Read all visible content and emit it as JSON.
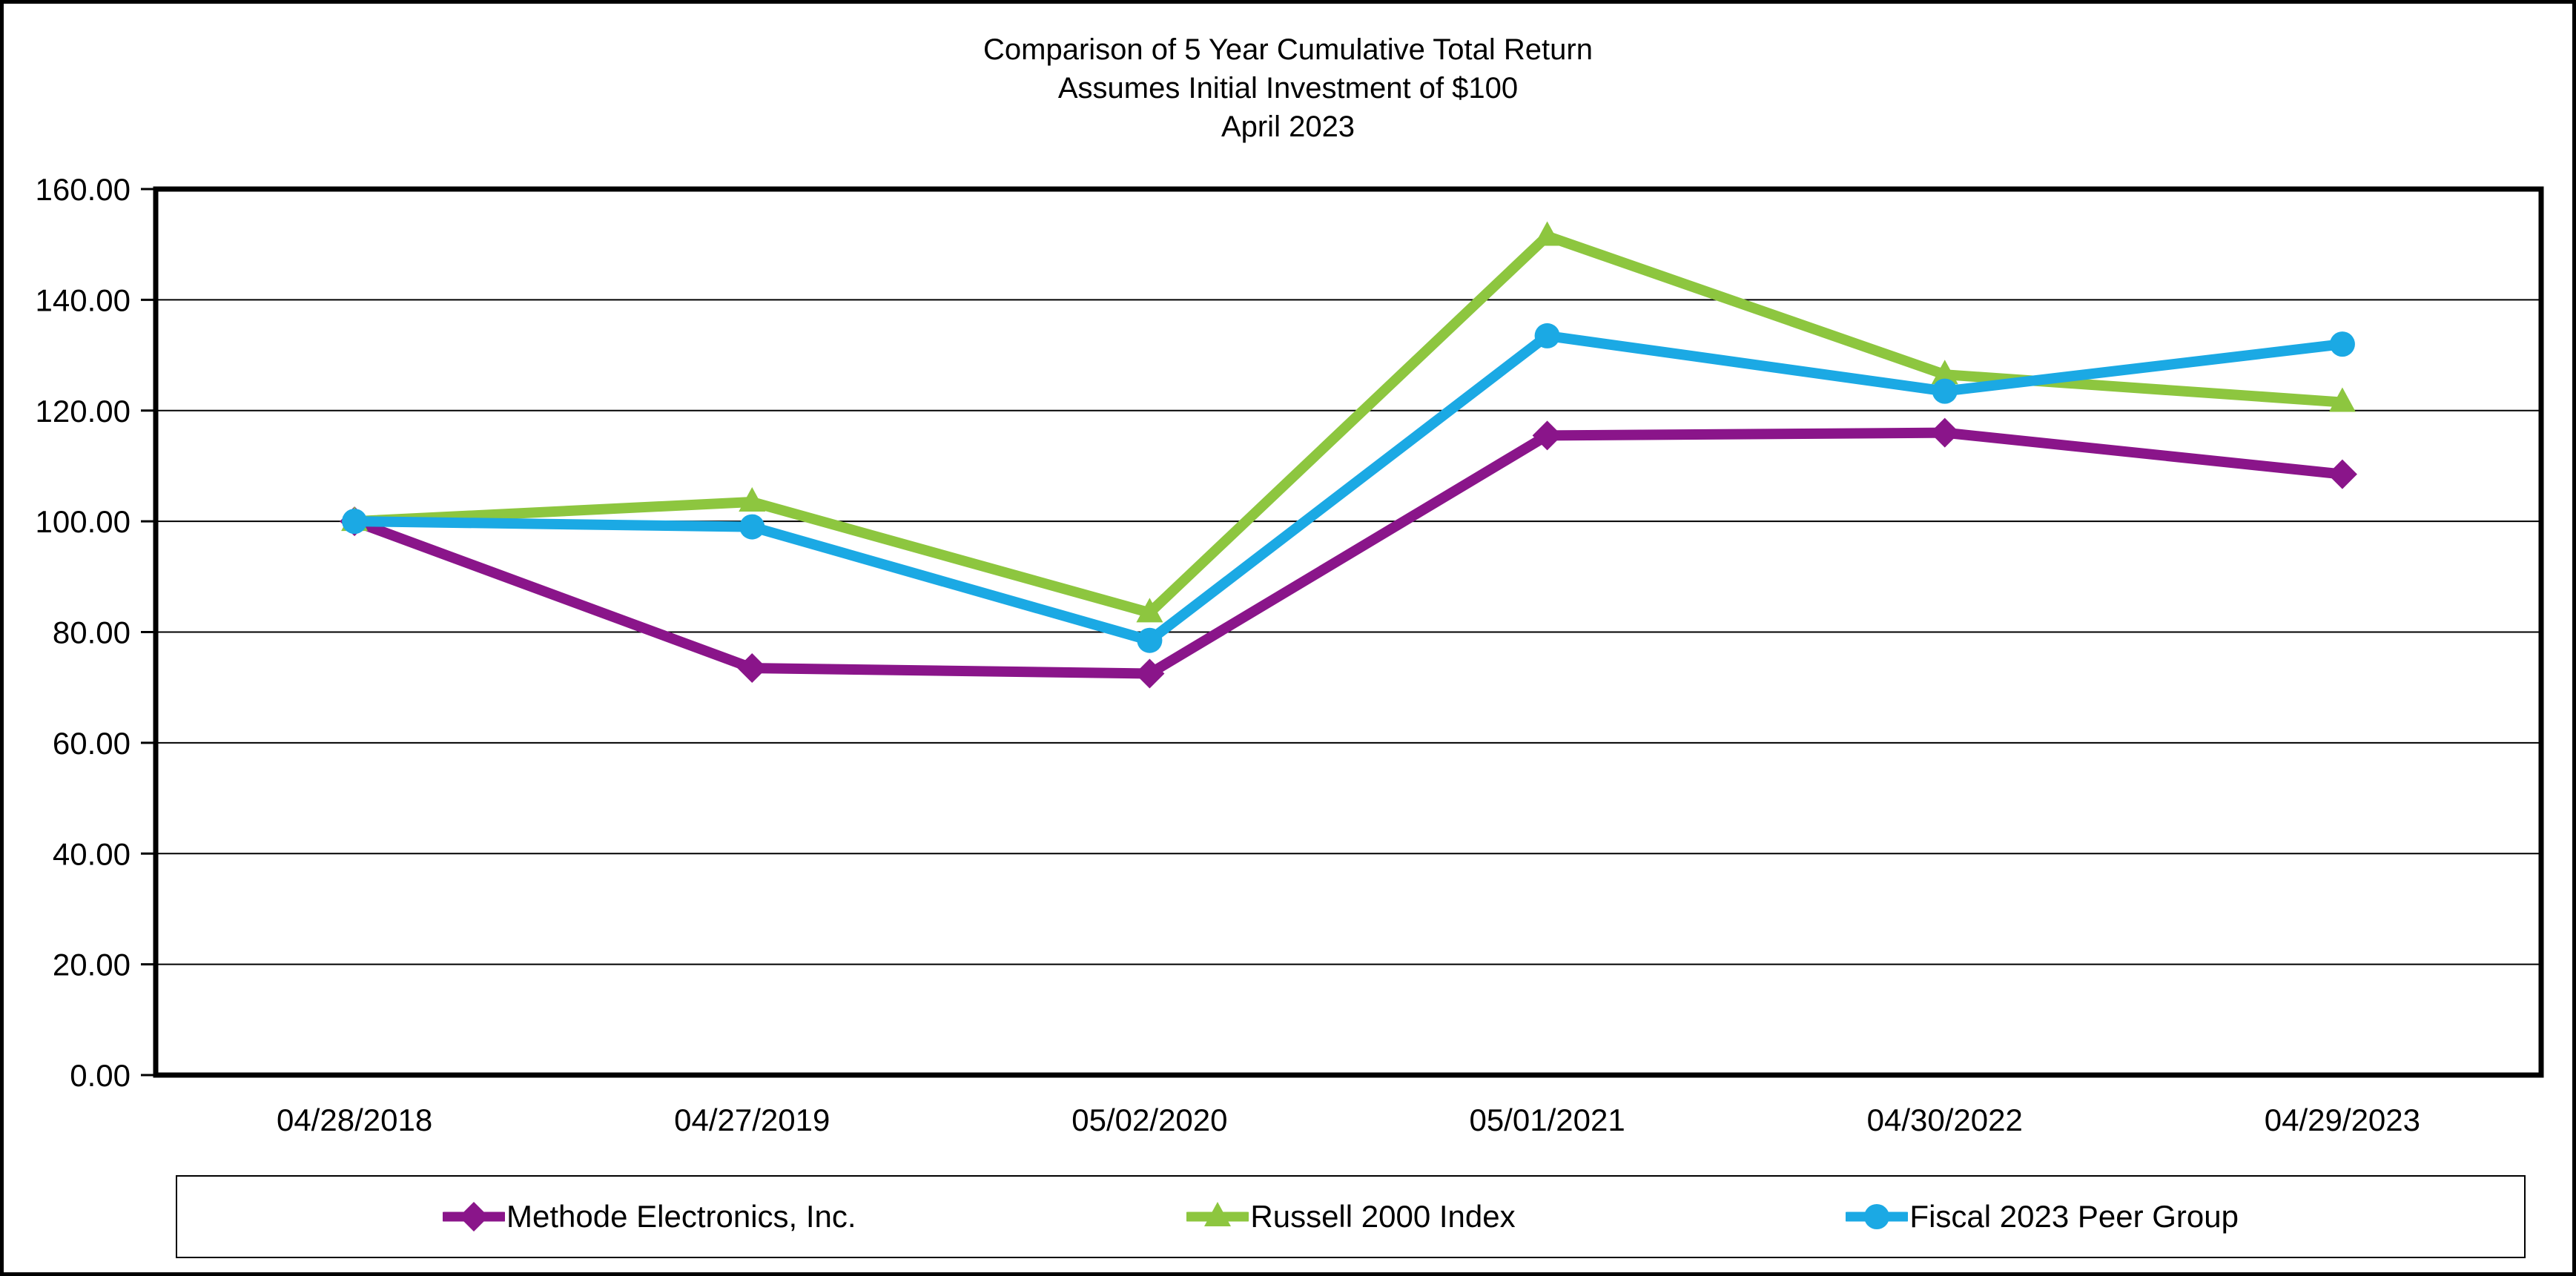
{
  "title": {
    "line1": "Comparison of 5 Year Cumulative Total Return",
    "line2": "Assumes Initial Investment of $100",
    "line3": "April 2023"
  },
  "chart_data": {
    "type": "line",
    "categories": [
      "04/28/2018",
      "04/27/2019",
      "05/02/2020",
      "05/01/2021",
      "04/30/2022",
      "04/29/2023"
    ],
    "series": [
      {
        "name": "Methode Electronics, Inc.",
        "marker": "diamond",
        "color": "#8A158A",
        "values": [
          100.0,
          73.5,
          72.5,
          115.5,
          116.0,
          108.5
        ]
      },
      {
        "name": "Russell 2000 Index",
        "marker": "triangle",
        "color": "#8DC63F",
        "values": [
          100.0,
          103.5,
          83.5,
          151.5,
          126.5,
          121.5
        ]
      },
      {
        "name": "Fiscal 2023 Peer Group",
        "marker": "circle",
        "color": "#1BA9E4",
        "values": [
          100.0,
          99.0,
          78.5,
          133.5,
          123.5,
          132.0
        ]
      }
    ],
    "ylim": [
      0,
      160
    ],
    "ytick_step": 20,
    "ytick_labels": [
      "0.00",
      "20.00",
      "40.00",
      "60.00",
      "80.00",
      "100.00",
      "120.00",
      "140.00",
      "160.00"
    ],
    "grid": "horizontal",
    "legend_position": "bottom",
    "xlabel": "",
    "ylabel": ""
  },
  "colors": {
    "axis": "#000000",
    "background": "#FFFFFF"
  }
}
